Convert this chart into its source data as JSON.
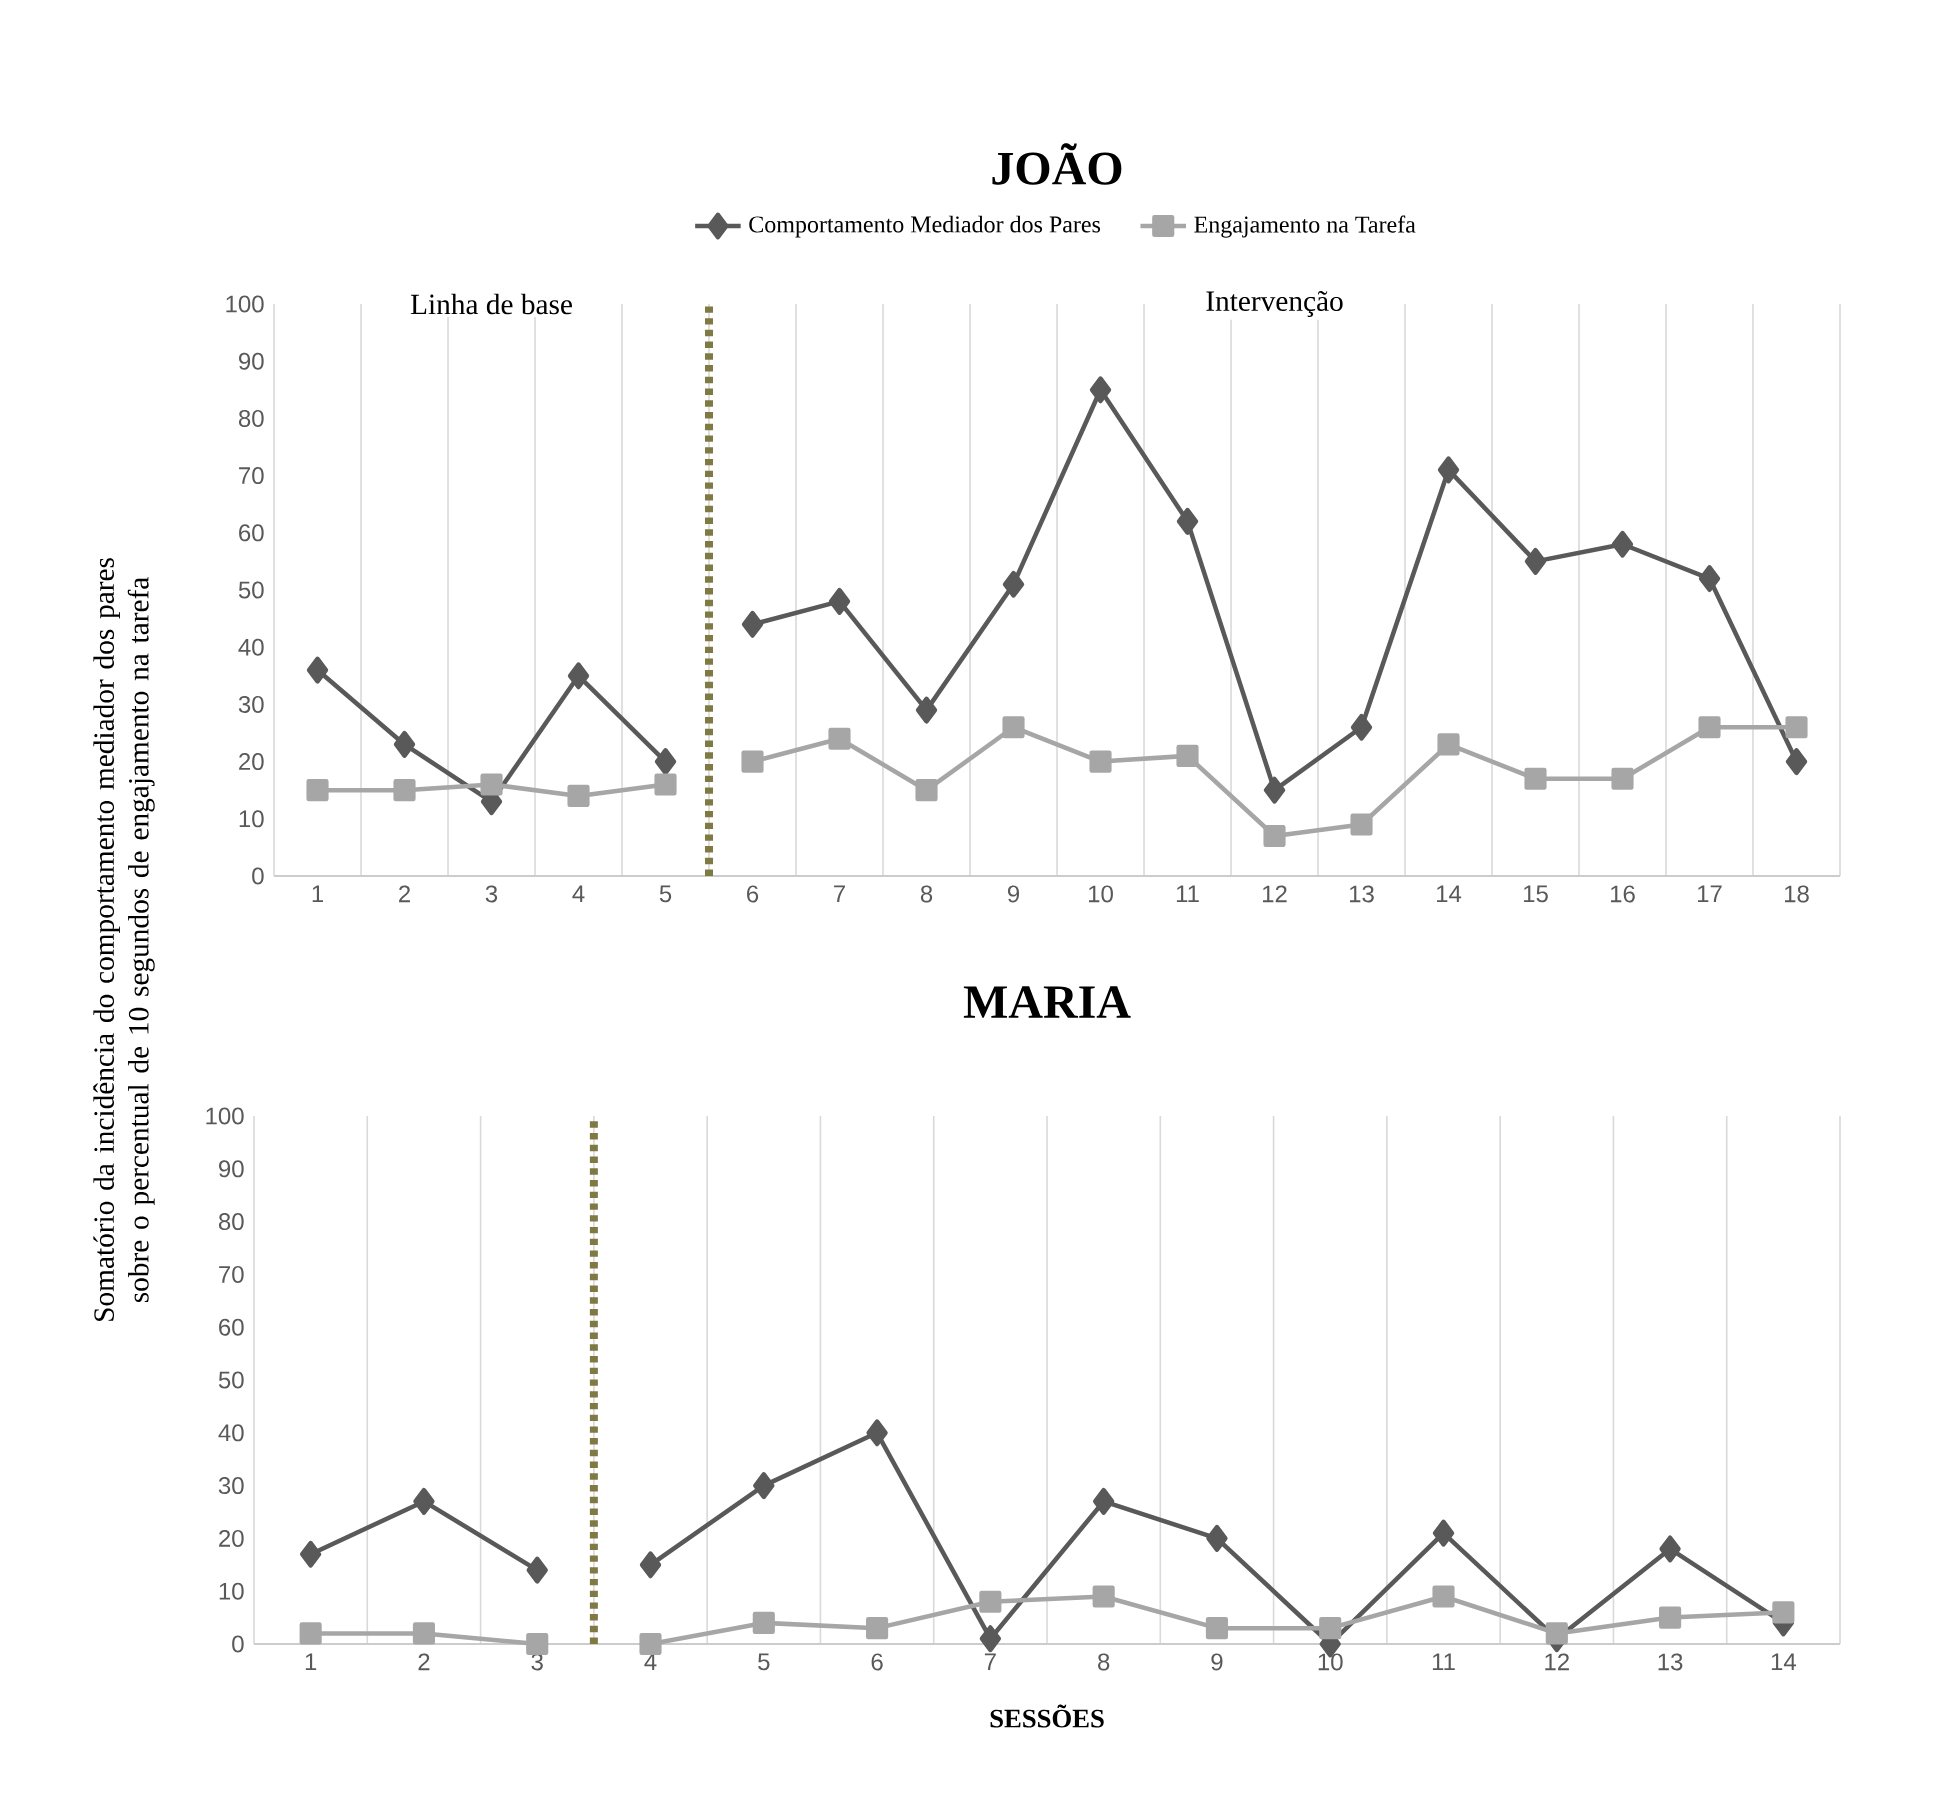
{
  "chart_data": [
    {
      "type": "line",
      "title": "JOÃO",
      "ylabel": "Somatório da incidência do comportamento mediador dos pares sobre o percentual de 10 segundos de engajamento na tarefa",
      "xlim": [
        0.5,
        18.5
      ],
      "xticks": [
        1,
        2,
        3,
        4,
        5,
        6,
        7,
        8,
        9,
        10,
        11,
        12,
        13,
        14,
        15,
        16,
        17,
        18
      ],
      "ylim": [
        0,
        100
      ],
      "yticks": [
        0,
        10,
        20,
        30,
        40,
        50,
        60,
        70,
        80,
        90,
        100
      ],
      "grid": "x",
      "legend": "top",
      "annotations": [
        "Linha de base",
        "Intervenção"
      ],
      "ref_lines": [
        {
          "axis": "x",
          "value": 5.5,
          "color": "#7f7a44",
          "line_style": "dotted"
        }
      ],
      "series": [
        {
          "name": "Comportamento Mediador dos Pares",
          "color": "#595959",
          "marker": "diamond",
          "x": [
            1,
            2,
            3,
            4,
            5
          ],
          "values": [
            36,
            23,
            13,
            35,
            20
          ]
        },
        {
          "name": "Engajamento na Tarefa",
          "color": "#a6a6a6",
          "marker": "square",
          "x": [
            1,
            2,
            3,
            4,
            5
          ],
          "values": [
            15,
            15,
            16,
            14,
            16
          ]
        },
        {
          "color": "#595959",
          "marker": "diamond",
          "x": [
            6,
            7,
            8,
            9,
            10,
            11,
            12,
            13,
            14,
            15,
            16,
            17,
            18
          ],
          "values": [
            44,
            48,
            29,
            51,
            85,
            62,
            15,
            26,
            71,
            55,
            58,
            52,
            20
          ]
        },
        {
          "color": "#a6a6a6",
          "marker": "square",
          "x": [
            6,
            7,
            8,
            9,
            10,
            11,
            12,
            13,
            14,
            15,
            16,
            17,
            18
          ],
          "values": [
            20,
            24,
            15,
            26,
            20,
            21,
            7,
            9,
            23,
            17,
            17,
            26,
            26
          ]
        }
      ]
    },
    {
      "type": "line",
      "title": "MARIA",
      "xlabel": "SESSÕES",
      "xlim": [
        0.5,
        14.5
      ],
      "xticks": [
        1,
        2,
        3,
        4,
        5,
        6,
        7,
        8,
        9,
        10,
        11,
        12,
        13,
        14
      ],
      "ylim": [
        0,
        100
      ],
      "yticks": [
        0,
        10,
        20,
        30,
        40,
        50,
        60,
        70,
        80,
        90,
        100
      ],
      "grid": "x",
      "ref_lines": [
        {
          "axis": "x",
          "value": 3.5,
          "color": "#7f7a44",
          "line_style": "dotted"
        }
      ],
      "series": [
        {
          "color": "#595959",
          "marker": "diamond",
          "x": [
            1,
            2,
            3
          ],
          "values": [
            17,
            27,
            14
          ]
        },
        {
          "color": "#a6a6a6",
          "marker": "square",
          "x": [
            1,
            2,
            3
          ],
          "values": [
            2,
            2,
            0
          ]
        },
        {
          "color": "#595959",
          "marker": "diamond",
          "x": [
            4,
            5,
            6,
            7,
            8,
            9,
            10,
            11,
            12,
            13,
            14
          ],
          "values": [
            15,
            30,
            40,
            1,
            27,
            20,
            0,
            21,
            1,
            18,
            4
          ]
        },
        {
          "color": "#a6a6a6",
          "marker": "square",
          "x": [
            4,
            5,
            6,
            7,
            8,
            9,
            10,
            11,
            12,
            13,
            14
          ],
          "values": [
            0,
            4,
            3,
            8,
            9,
            3,
            3,
            9,
            2,
            5,
            6
          ]
        }
      ]
    }
  ]
}
